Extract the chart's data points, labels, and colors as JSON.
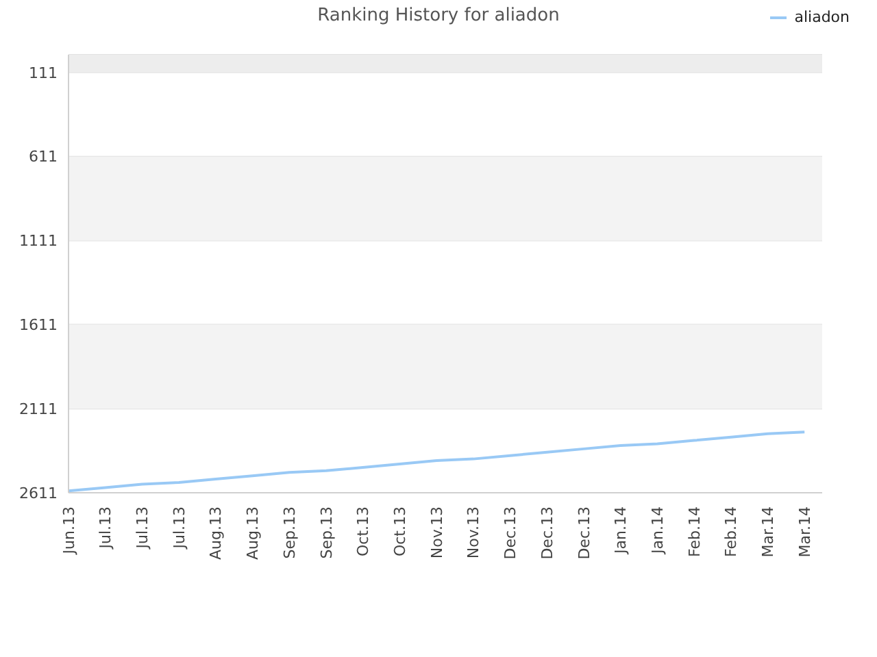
{
  "chart_data": {
    "type": "line",
    "title": "Ranking History for aliadon",
    "categories": [
      "Jun.13",
      "Jul.13",
      "Jul.13",
      "Jul.13",
      "Aug.13",
      "Aug.13",
      "Sep.13",
      "Sep.13",
      "Oct.13",
      "Oct.13",
      "Nov.13",
      "Nov.13",
      "Dec.13",
      "Dec.13",
      "Dec.13",
      "Jan.14",
      "Jan.14",
      "Feb.14",
      "Feb.14",
      "Mar.14",
      "Mar.14"
    ],
    "series": [
      {
        "name": "aliadon",
        "color": "#99c9f5",
        "values": [
          2600,
          2580,
          2560,
          2550,
          2530,
          2510,
          2490,
          2480,
          2460,
          2440,
          2420,
          2410,
          2390,
          2370,
          2350,
          2330,
          2320,
          2300,
          2280,
          2260,
          2250
        ]
      }
    ],
    "ylim": [
      2611,
      6
    ],
    "yticks": [
      111,
      611,
      1111,
      1611,
      2111,
      2611
    ],
    "bands": [
      {
        "axis": "y",
        "from": 6,
        "to": 111,
        "color": "#ededed"
      },
      {
        "axis": "y",
        "from": 611,
        "to": 1111,
        "color": "#f3f3f3"
      },
      {
        "axis": "y",
        "from": 1611,
        "to": 2111,
        "color": "#f3f3f3"
      }
    ],
    "grid": "y",
    "legend": "top right",
    "marker": "none",
    "line_style": "solid"
  }
}
